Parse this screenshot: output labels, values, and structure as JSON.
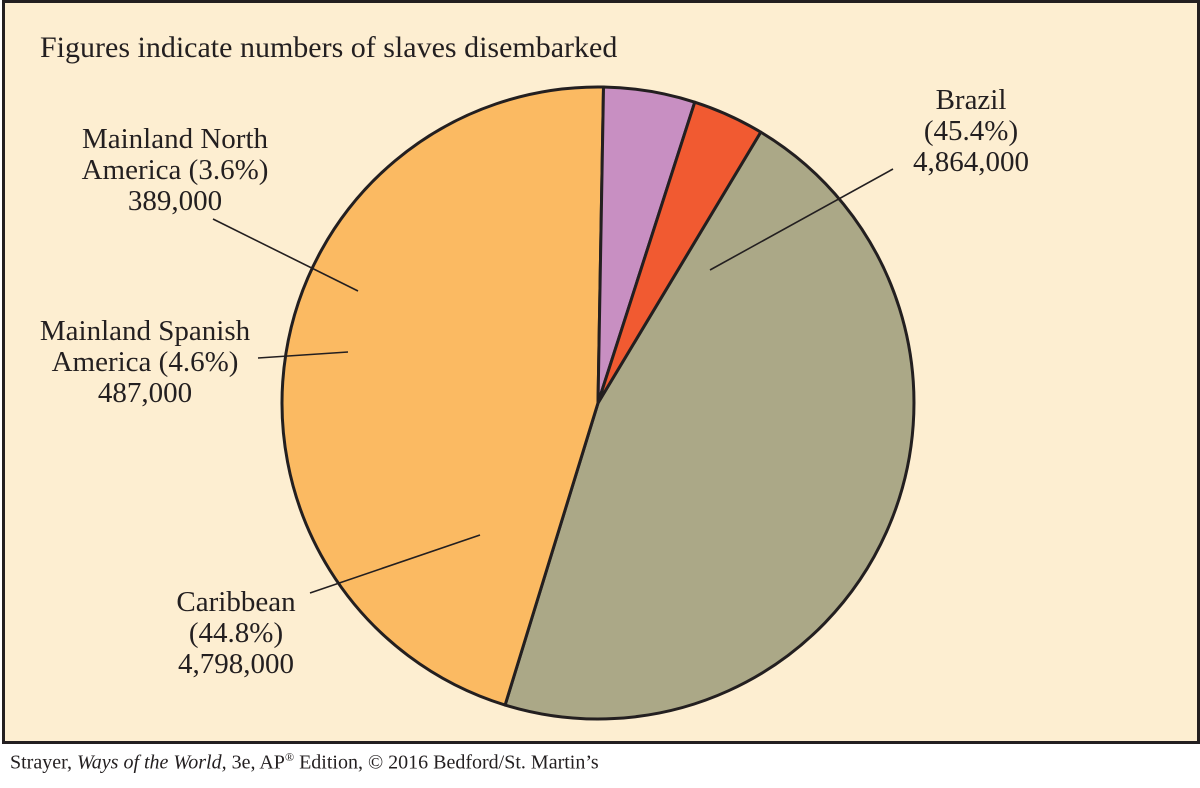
{
  "chart_data": {
    "type": "pie",
    "title": "Figures indicate numbers of slaves disembarked",
    "slices": [
      {
        "label": "Brazil",
        "label_lines": [
          "Brazil"
        ],
        "percent": 45.4,
        "percent_text": "(45.4%)",
        "value": 4864000,
        "value_text": "4,864,000",
        "color": "#aba887"
      },
      {
        "label": "Caribbean",
        "label_lines": [
          "Caribbean"
        ],
        "percent": 44.8,
        "percent_text": "(44.8%)",
        "value": 4798000,
        "value_text": "4,798,000",
        "color": "#fbba62"
      },
      {
        "label": "Mainland Spanish America",
        "label_lines": [
          "Mainland Spanish",
          "America"
        ],
        "percent": 4.6,
        "percent_text": "(4.6%)",
        "value": 487000,
        "value_text": "487,000",
        "color": "#c88fc2"
      },
      {
        "label": "Mainland North America",
        "label_lines": [
          "Mainland North",
          "America"
        ],
        "percent": 3.6,
        "percent_text": "(3.6%)",
        "value": 389000,
        "value_text": "389,000",
        "color": "#f15a31"
      }
    ]
  },
  "caption": {
    "author": "Strayer, ",
    "book_title": "Ways of the World,",
    "edition": " 3e, AP",
    "reg_mark": "®",
    "rest": " Edition, © 2016 Bedford/St. Martin’s"
  },
  "colors": {
    "background": "#fdeed1",
    "outline": "#231f20"
  }
}
